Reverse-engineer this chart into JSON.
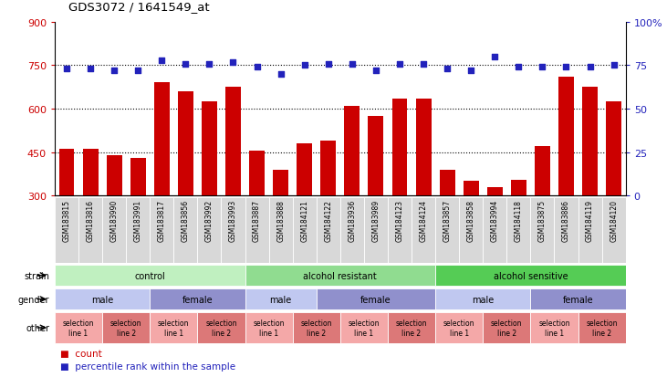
{
  "title": "GDS3072 / 1641549_at",
  "samples": [
    "GSM183815",
    "GSM183816",
    "GSM183990",
    "GSM183991",
    "GSM183817",
    "GSM183856",
    "GSM183992",
    "GSM183993",
    "GSM183887",
    "GSM183888",
    "GSM184121",
    "GSM184122",
    "GSM183936",
    "GSM183989",
    "GSM184123",
    "GSM184124",
    "GSM183857",
    "GSM183858",
    "GSM183994",
    "GSM184118",
    "GSM183875",
    "GSM183886",
    "GSM184119",
    "GSM184120"
  ],
  "bar_values": [
    460,
    460,
    440,
    430,
    690,
    660,
    625,
    675,
    455,
    390,
    480,
    490,
    610,
    575,
    635,
    635,
    390,
    350,
    330,
    355,
    470,
    710,
    675,
    625
  ],
  "percentile_values": [
    73,
    73,
    72,
    72,
    78,
    76,
    76,
    77,
    74,
    70,
    75,
    76,
    76,
    72,
    76,
    76,
    73,
    72,
    80,
    74,
    74,
    74,
    74,
    75
  ],
  "ylim_left": [
    300,
    900
  ],
  "ylim_right": [
    0,
    100
  ],
  "yticks_left": [
    300,
    450,
    600,
    750,
    900
  ],
  "yticks_right": [
    0,
    25,
    50,
    75,
    100
  ],
  "bar_color": "#cc0000",
  "dot_color": "#2222bb",
  "strain_groups": [
    {
      "label": "control",
      "start": 0,
      "end": 8,
      "color": "#c0f0c0"
    },
    {
      "label": "alcohol resistant",
      "start": 8,
      "end": 16,
      "color": "#90dc90"
    },
    {
      "label": "alcohol sensitive",
      "start": 16,
      "end": 24,
      "color": "#55cc55"
    }
  ],
  "gender_groups": [
    {
      "label": "male",
      "start": 0,
      "end": 4,
      "color": "#c0c8f0"
    },
    {
      "label": "female",
      "start": 4,
      "end": 8,
      "color": "#9090cc"
    },
    {
      "label": "male",
      "start": 8,
      "end": 11,
      "color": "#c0c8f0"
    },
    {
      "label": "female",
      "start": 11,
      "end": 16,
      "color": "#9090cc"
    },
    {
      "label": "male",
      "start": 16,
      "end": 20,
      "color": "#c0c8f0"
    },
    {
      "label": "female",
      "start": 20,
      "end": 24,
      "color": "#9090cc"
    }
  ],
  "other_groups": [
    {
      "label": "selection\nline 1",
      "start": 0,
      "end": 2,
      "color": "#f4a8a8"
    },
    {
      "label": "selection\nline 2",
      "start": 2,
      "end": 4,
      "color": "#dc7878"
    },
    {
      "label": "selection\nline 1",
      "start": 4,
      "end": 6,
      "color": "#f4a8a8"
    },
    {
      "label": "selection\nline 2",
      "start": 6,
      "end": 8,
      "color": "#dc7878"
    },
    {
      "label": "selection\nline 1",
      "start": 8,
      "end": 10,
      "color": "#f4a8a8"
    },
    {
      "label": "selection\nline 2",
      "start": 10,
      "end": 12,
      "color": "#dc7878"
    },
    {
      "label": "selection\nline 1",
      "start": 12,
      "end": 14,
      "color": "#f4a8a8"
    },
    {
      "label": "selection\nline 2",
      "start": 14,
      "end": 16,
      "color": "#dc7878"
    },
    {
      "label": "selection\nline 1",
      "start": 16,
      "end": 18,
      "color": "#f4a8a8"
    },
    {
      "label": "selection\nline 2",
      "start": 18,
      "end": 20,
      "color": "#dc7878"
    },
    {
      "label": "selection\nline 1",
      "start": 20,
      "end": 22,
      "color": "#f4a8a8"
    },
    {
      "label": "selection\nline 2",
      "start": 22,
      "end": 24,
      "color": "#dc7878"
    }
  ]
}
